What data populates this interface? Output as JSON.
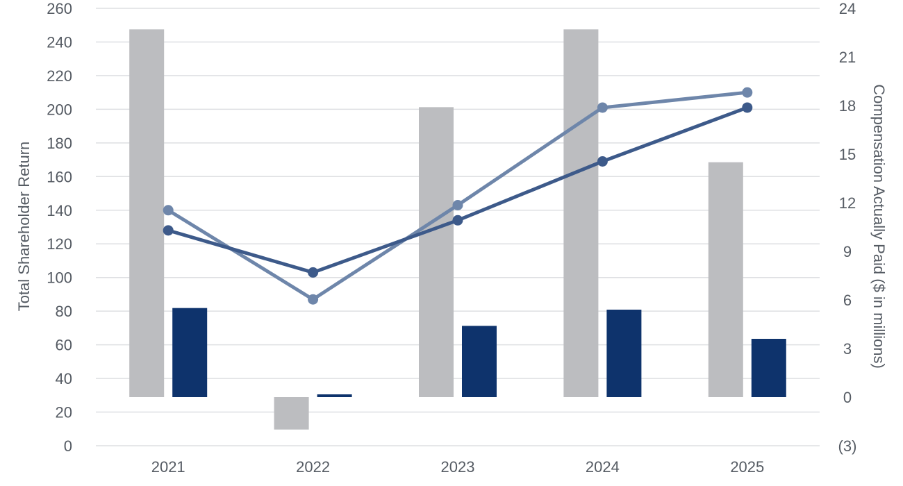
{
  "chart_data": {
    "type": "bar+line",
    "categories": [
      "2021",
      "2022",
      "2023",
      "2024",
      "2025"
    ],
    "left_axis": {
      "label": "Total Shareholder Return",
      "ylim": [
        0,
        260
      ],
      "ticks": [
        "0",
        "20",
        "40",
        "60",
        "80",
        "100",
        "120",
        "140",
        "160",
        "180",
        "200",
        "220",
        "240",
        "260"
      ]
    },
    "right_axis": {
      "label": "Compensation Actually Paid ($ in millions)",
      "ylim": [
        -3,
        24
      ],
      "ticks": [
        "(3)",
        "0",
        "3",
        "6",
        "9",
        "12",
        "15",
        "18",
        "21",
        "24"
      ]
    },
    "bar_series": [
      {
        "axis": "right",
        "color": "#bcbdc0",
        "values": [
          22.7,
          -2.0,
          17.9,
          22.7,
          14.5
        ]
      },
      {
        "axis": "right",
        "color": "#0e336c",
        "values": [
          5.5,
          0.15,
          4.4,
          5.4,
          3.6
        ]
      }
    ],
    "line_series": [
      {
        "axis": "left",
        "color": "#6e86aa",
        "values": [
          140,
          87,
          143,
          201,
          210
        ]
      },
      {
        "axis": "left",
        "color": "#3d5a8a",
        "values": [
          128,
          103,
          134,
          169,
          201
        ]
      }
    ],
    "grid": true,
    "legend": "none"
  }
}
